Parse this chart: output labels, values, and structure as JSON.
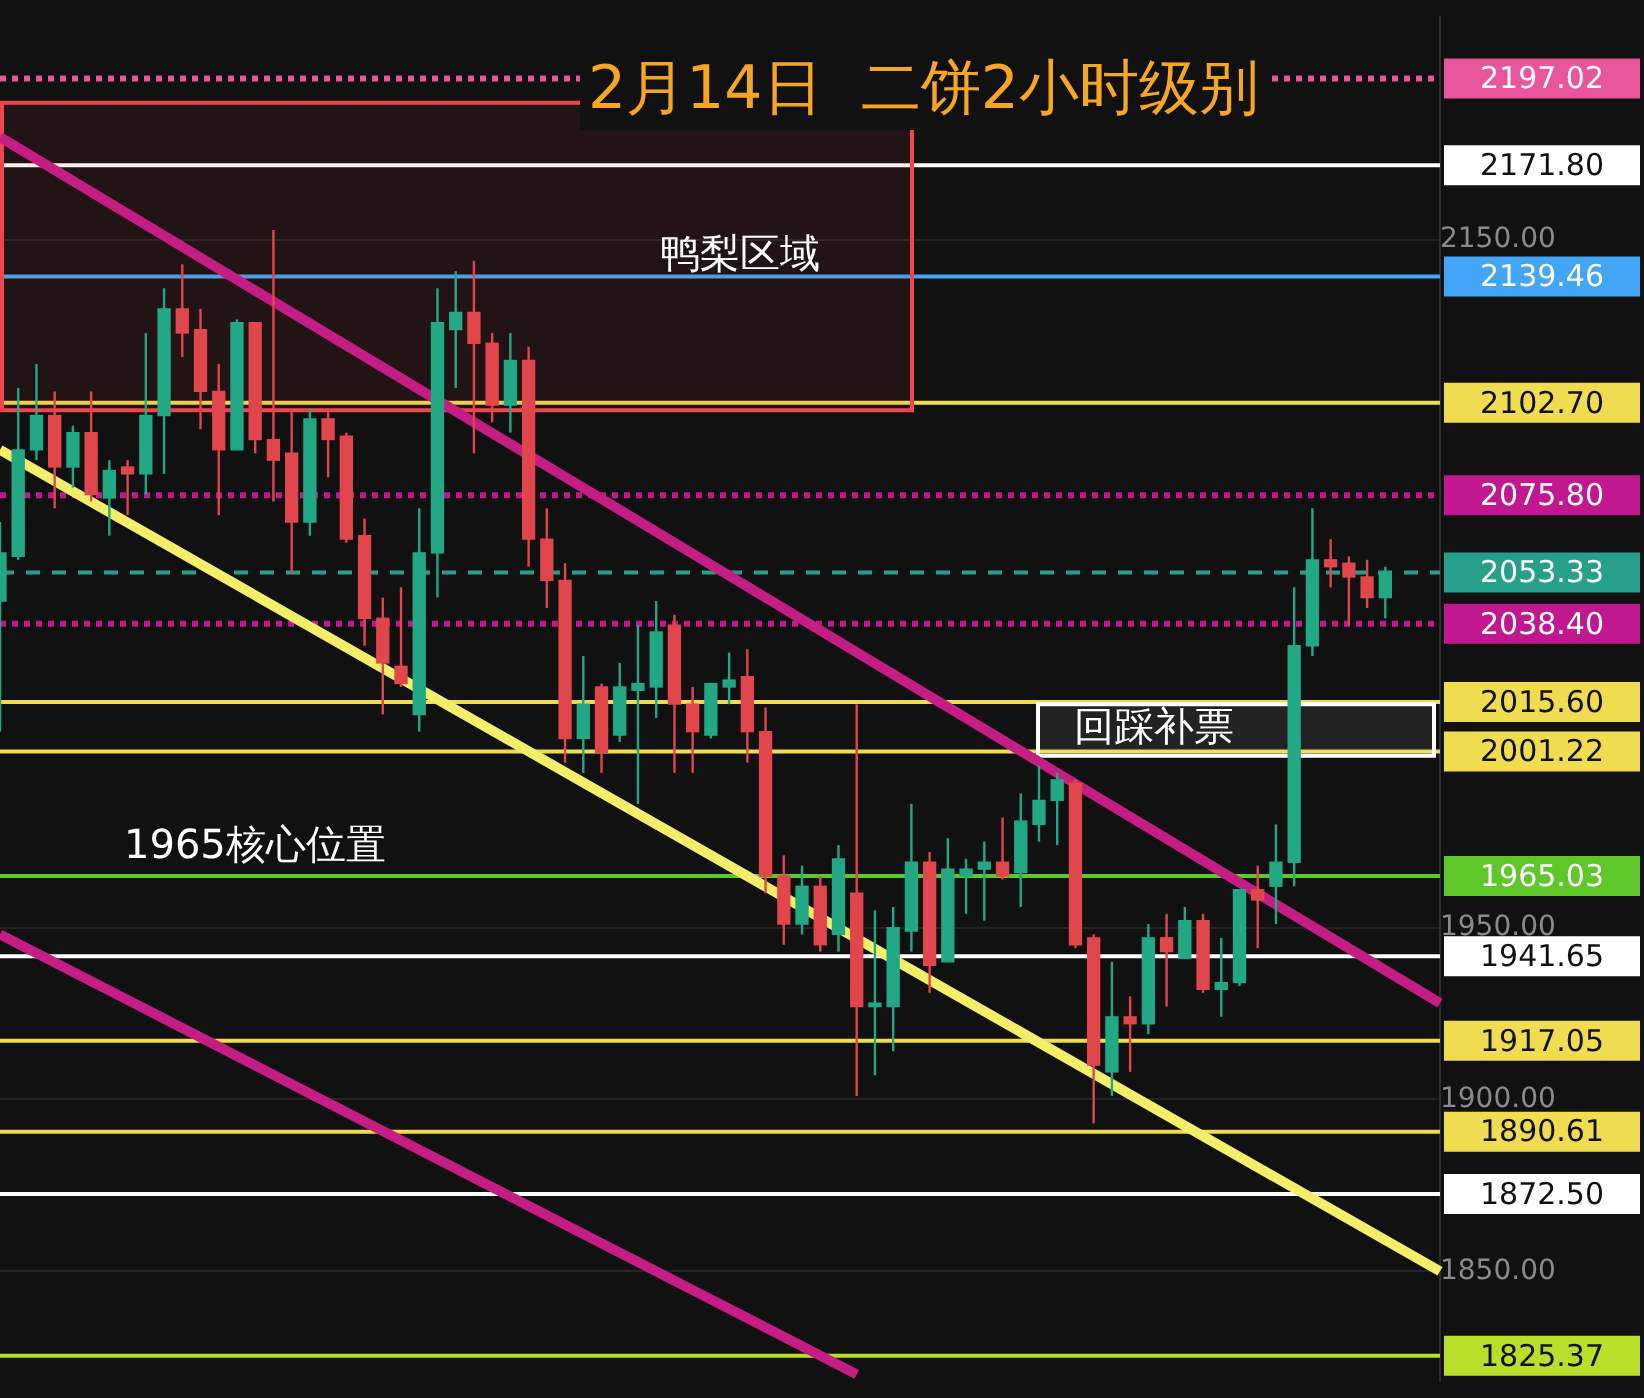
{
  "chart_data": {
    "type": "candlestick",
    "title": "2月14日  二饼2小时级别",
    "tick_labels": "y",
    "grid": "y",
    "categories": [
      null,
      null,
      null,
      null,
      null,
      null,
      null,
      null,
      null,
      null,
      null,
      null,
      null,
      null,
      null,
      null,
      null,
      null,
      null,
      null,
      null,
      null,
      null,
      null,
      null,
      null,
      null,
      null,
      null,
      null,
      null,
      null,
      null,
      null,
      null,
      null,
      null,
      null,
      null,
      null,
      null,
      null,
      null,
      null,
      null,
      null,
      null,
      null,
      null,
      null,
      null,
      null,
      null,
      null,
      null,
      null,
      null,
      null,
      null,
      null,
      null,
      null,
      null,
      null,
      null,
      null,
      null,
      null,
      null,
      null,
      null,
      null,
      null,
      null,
      null,
      null,
      null,
      null,
      null,
      null
    ],
    "ohlc": [
      [
        2045,
        2068,
        2007,
        2059
      ],
      [
        2058,
        2107,
        2057,
        2089
      ],
      [
        2089,
        2114,
        2086,
        2099
      ],
      [
        2099,
        2106,
        2072,
        2084
      ],
      [
        2084,
        2096,
        2078,
        2094
      ],
      [
        2094,
        2106,
        2074,
        2076
      ],
      [
        2075,
        2086,
        2064,
        2083
      ],
      [
        2084,
        2086,
        2070,
        2082
      ],
      [
        2082,
        2123,
        2076,
        2099
      ],
      [
        2099,
        2136,
        2082,
        2130
      ],
      [
        2130,
        2143,
        2116,
        2123
      ],
      [
        2124,
        2130,
        2095,
        2106
      ],
      [
        2106,
        2114,
        2070,
        2089
      ],
      [
        2089,
        2127,
        2089,
        2126
      ],
      [
        2126,
        2126,
        2088,
        2092
      ],
      [
        2092,
        2153,
        2074,
        2086
      ],
      [
        2088,
        2100,
        2053,
        2068
      ],
      [
        2068,
        2101,
        2064,
        2098
      ],
      [
        2098,
        2100,
        2081,
        2092
      ],
      [
        2093,
        2094,
        2062,
        2063
      ],
      [
        2064,
        2069,
        2032,
        2040
      ],
      [
        2040,
        2046,
        2012,
        2027
      ],
      [
        2026,
        2049,
        2020,
        2021
      ],
      [
        2012,
        2072,
        2007,
        2059
      ],
      [
        2059,
        2136,
        2046,
        2126
      ],
      [
        2124,
        2141,
        2107,
        2129
      ],
      [
        2129,
        2144,
        2088,
        2120
      ],
      [
        2120,
        2123,
        2097,
        2102
      ],
      [
        2102,
        2123,
        2094,
        2115
      ],
      [
        2115,
        2119,
        2055,
        2063
      ],
      [
        2063,
        2072,
        2043,
        2051
      ],
      [
        2051,
        2056,
        1998,
        2005
      ],
      [
        2005,
        2029,
        1995,
        2015
      ],
      [
        2020,
        2021,
        1995,
        2001
      ],
      [
        2006,
        2027,
        2004,
        2020
      ],
      [
        2019,
        2038,
        1986,
        2021
      ],
      [
        2020,
        2045,
        2011,
        2036
      ],
      [
        2038,
        2041,
        1995,
        2015
      ],
      [
        2015,
        2020,
        1995,
        2007
      ],
      [
        2006,
        2021,
        2005,
        2021
      ],
      [
        2020,
        2030,
        2015,
        2022
      ],
      [
        2023,
        2031,
        1998,
        2007
      ],
      [
        2007,
        2014,
        1960,
        1965
      ],
      [
        1965,
        1971,
        1945,
        1951
      ],
      [
        1951,
        1968,
        1948,
        1962
      ],
      [
        1962,
        1965,
        1943,
        1945
      ],
      [
        1948,
        1974,
        1943,
        1970
      ],
      [
        1960,
        2015,
        1901,
        1927
      ],
      [
        1927,
        1955,
        1907,
        1928
      ],
      [
        1927,
        1956,
        1914,
        1950
      ],
      [
        1949,
        1986,
        1943,
        1969
      ],
      [
        1969,
        1972,
        1931,
        1939
      ],
      [
        1940,
        1976,
        1940,
        1967
      ],
      [
        1965,
        1970,
        1954,
        1967
      ],
      [
        1967,
        1975,
        1952,
        1969
      ],
      [
        1969,
        1982,
        1964,
        1965
      ],
      [
        1966,
        1989,
        1956,
        1981
      ],
      [
        1980,
        1997,
        1975,
        1987
      ],
      [
        1987,
        1995,
        1974,
        1993
      ],
      [
        1992,
        1993,
        1944,
        1945
      ],
      [
        1947,
        1948,
        1893,
        1910
      ],
      [
        1908,
        1940,
        1901,
        1924
      ],
      [
        1924,
        1930,
        1908,
        1922
      ],
      [
        1922,
        1951,
        1919,
        1947
      ],
      [
        1947,
        1954,
        1927,
        1943
      ],
      [
        1941,
        1956,
        1941,
        1952
      ],
      [
        1952,
        1954,
        1931,
        1932
      ],
      [
        1932,
        1947,
        1924,
        1934
      ],
      [
        1934,
        1961,
        1933,
        1961
      ],
      [
        1961,
        1968,
        1944,
        1958
      ],
      [
        1962,
        1980,
        1951,
        1969
      ],
      [
        1969,
        2049,
        1962,
        2032
      ],
      [
        2032,
        2072,
        2029,
        2057
      ],
      [
        2057,
        2063,
        2049,
        2055
      ],
      [
        2056,
        2058,
        2038,
        2052
      ],
      [
        2052,
        2057,
        2043,
        2046
      ],
      [
        2046,
        2055,
        2040,
        2053
      ],
      null,
      null,
      null
    ],
    "colors": [
      "#22a884",
      "#22a884",
      "#22a884",
      "#e0464b",
      "#22a884",
      "#e0464b",
      "#22a884",
      "#e0464b",
      "#22a884",
      "#22a884",
      "#e0464b",
      "#e0464b",
      "#e0464b",
      "#22a884",
      "#e0464b",
      "#e0464b",
      "#e0464b",
      "#22a884",
      "#e0464b",
      "#e0464b",
      "#e0464b",
      "#e0464b",
      "#e0464b",
      "#22a884",
      "#22a884",
      "#22a884",
      "#e0464b",
      "#e0464b",
      "#22a884",
      "#e0464b",
      "#e0464b",
      "#e0464b",
      "#22a884",
      "#e0464b",
      "#22a884",
      "#22a884",
      "#22a884",
      "#e0464b",
      "#e0464b",
      "#22a884",
      "#22a884",
      "#e0464b",
      "#e0464b",
      "#e0464b",
      "#22a884",
      "#e0464b",
      "#22a884",
      "#e0464b",
      "#22a884",
      "#22a884",
      "#22a884",
      "#e0464b",
      "#22a884",
      "#22a884",
      "#22a884",
      "#e0464b",
      "#22a884",
      "#22a884",
      "#22a884",
      "#e0464b",
      "#e0464b",
      "#22a884",
      "#e0464b",
      "#22a884",
      "#e0464b",
      "#22a884",
      "#e0464b",
      "#22a884",
      "#22a884",
      "#e0464b",
      "#22a884",
      "#22a884",
      "#22a884",
      "#e0464b",
      "#e0464b",
      "#e0464b",
      "#22a884",
      null,
      null,
      null
    ],
    "series": [
      {
        "type": "line",
        "color": "#c41d84",
        "values": [
          2180,
          null,
          null,
          null,
          null,
          null,
          null,
          null,
          null,
          null,
          null,
          null,
          null,
          null,
          null,
          null,
          null,
          null,
          null,
          null,
          null,
          null,
          null,
          null,
          null,
          null,
          null,
          null,
          null,
          null,
          null,
          null,
          null,
          null,
          null,
          null,
          null,
          null,
          null,
          null,
          null,
          null,
          null,
          null,
          null,
          null,
          null,
          null,
          null,
          null,
          null,
          null,
          null,
          null,
          null,
          null,
          null,
          null,
          null,
          null,
          null,
          null,
          null,
          null,
          null,
          null,
          null,
          null,
          null,
          null,
          null,
          null,
          null,
          null,
          null,
          null,
          null,
          null,
          null,
          1928
        ]
      },
      {
        "type": "line",
        "color": "#f3ee6a",
        "values": [
          2089,
          null,
          null,
          null,
          null,
          null,
          null,
          null,
          null,
          null,
          null,
          null,
          null,
          null,
          null,
          null,
          null,
          null,
          null,
          null,
          null,
          null,
          null,
          null,
          null,
          null,
          null,
          null,
          null,
          null,
          null,
          null,
          null,
          null,
          null,
          null,
          null,
          null,
          null,
          null,
          null,
          null,
          null,
          null,
          null,
          null,
          null,
          null,
          null,
          null,
          null,
          null,
          null,
          null,
          null,
          null,
          null,
          null,
          null,
          null,
          null,
          null,
          null,
          null,
          null,
          null,
          null,
          null,
          null,
          null,
          null,
          null,
          null,
          null,
          null,
          null,
          null,
          null,
          null,
          1850
        ]
      },
      {
        "type": "line",
        "color": "#c41d84",
        "values": [
          1948,
          null,
          null,
          null,
          null,
          null,
          null,
          null,
          null,
          null,
          null,
          null,
          null,
          null,
          null,
          null,
          null,
          null,
          null,
          null,
          null,
          null,
          null,
          null,
          null,
          null,
          null,
          null,
          null,
          null,
          null,
          null,
          null,
          null,
          null,
          null,
          null,
          null,
          null,
          null,
          null,
          null,
          null,
          null,
          null,
          null,
          null,
          1820,
          null,
          null,
          null,
          null,
          null,
          null,
          null,
          null,
          null,
          null,
          null,
          null,
          null,
          null,
          null,
          null,
          null,
          null,
          null,
          null,
          null,
          null,
          null,
          null,
          null,
          null,
          null,
          null,
          null,
          null,
          null,
          null
        ]
      }
    ],
    "ylim": [
      1818,
      2215
    ],
    "yticks": [
      {
        "value": 1850,
        "label": "1850.00"
      },
      {
        "value": 1900,
        "label": "1900.00"
      },
      {
        "value": 1950,
        "label": "1950.00"
      },
      {
        "value": 2150,
        "label": "2150.00"
      }
    ],
    "ref_lines": [
      {
        "axis": "y",
        "value": 2197.02,
        "label": "2197.02",
        "color": "#e8559b",
        "line_style": "dotted"
      },
      {
        "axis": "y",
        "value": 2171.8,
        "label": "2171.80",
        "color": "#ffffff",
        "line_style": "solid"
      },
      {
        "axis": "y",
        "value": 2139.46,
        "label": "2139.46",
        "color": "#42a5f5",
        "line_style": "solid"
      },
      {
        "axis": "y",
        "value": 2102.7,
        "label": "2102.70",
        "color": "#f0dc50",
        "line_style": "solid"
      },
      {
        "axis": "y",
        "value": 2075.8,
        "label": "2075.80",
        "color": "#c2188f",
        "line_style": "dotted"
      },
      {
        "axis": "y",
        "value": 2053.33,
        "label": "2053.33",
        "color": "#26a08a",
        "line_style": "dashed"
      },
      {
        "axis": "y",
        "value": 2038.4,
        "label": "2038.40",
        "color": "#c2188f",
        "line_style": "dotted"
      },
      {
        "axis": "y",
        "value": 2015.6,
        "label": "2015.60",
        "color": "#f0dc50",
        "line_style": "solid"
      },
      {
        "axis": "y",
        "value": 2001.22,
        "label": "2001.22",
        "color": "#f0dc50",
        "line_style": "solid"
      },
      {
        "axis": "y",
        "value": 1965.03,
        "label": "1965.03",
        "color": "#5ec72a",
        "line_style": "solid"
      },
      {
        "axis": "y",
        "value": 1941.65,
        "label": "1941.65",
        "color": "#ffffff",
        "line_style": "solid"
      },
      {
        "axis": "y",
        "value": 1917.05,
        "label": "1917.05",
        "color": "#f0dc50",
        "line_style": "solid"
      },
      {
        "axis": "y",
        "value": 1890.61,
        "label": "1890.61",
        "color": "#f0dc50",
        "line_style": "solid"
      },
      {
        "axis": "y",
        "value": 1872.5,
        "label": "1872.50",
        "color": "#ffffff",
        "line_style": "solid"
      },
      {
        "axis": "y",
        "value": 1825.37,
        "label": "1825.37",
        "color": "#b8e02a",
        "line_style": "solid"
      }
    ],
    "bands": [
      {
        "axis": "y",
        "from": 2100.5,
        "to": 2190,
        "label": "鸭梨区域",
        "color": "#f0454f"
      },
      {
        "axis": "y",
        "from": 2000,
        "to": 2015,
        "label": "回踩补票",
        "color": "#ffffff"
      }
    ],
    "annotations": [
      {
        "text": "1965核心位置",
        "y": 1965.03
      }
    ]
  }
}
